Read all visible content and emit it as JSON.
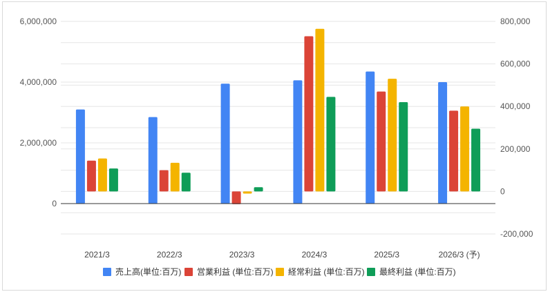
{
  "chart_data": {
    "type": "bar",
    "categories": [
      "2021/3",
      "2022/3",
      "2023/3",
      "2024/3",
      "2025/3",
      "2026/3 (予)"
    ],
    "series": [
      {
        "name": "売上高(単位:百万)",
        "axis": "left",
        "color": "#4285F4",
        "values": [
          3100000,
          2850000,
          3950000,
          4060000,
          4350000,
          4000000
        ]
      },
      {
        "name": "営業利益 (単位:百万)",
        "axis": "right",
        "color": "#DB4437",
        "values": [
          145000,
          100000,
          -60000,
          730000,
          470000,
          380000
        ]
      },
      {
        "name": "経常利益 (単位:百万)",
        "axis": "right",
        "color": "#F4B400",
        "values": [
          155000,
          135000,
          -10000,
          765000,
          530000,
          400000
        ]
      },
      {
        "name": "最終利益 (単位:百万)",
        "axis": "right",
        "color": "#0F9D58",
        "values": [
          108000,
          88000,
          20000,
          445000,
          420000,
          295000
        ]
      }
    ],
    "left_axis": {
      "ylim": [
        -1000000,
        6000000
      ],
      "ticks": [
        0,
        2000000,
        4000000,
        6000000
      ],
      "tick_labels": [
        "0",
        "2,000,000",
        "4,000,000",
        "6,000,000"
      ]
    },
    "right_axis": {
      "ylim": [
        -200000,
        800000
      ],
      "ticks": [
        -200000,
        0,
        200000,
        400000,
        600000,
        800000
      ],
      "tick_labels": [
        "-200,000",
        "0",
        "200,000",
        "400,000",
        "600,000",
        "800,000"
      ]
    },
    "grid": true,
    "legend_position": "bottom",
    "title": "",
    "xlabel": "",
    "ylabel": ""
  }
}
